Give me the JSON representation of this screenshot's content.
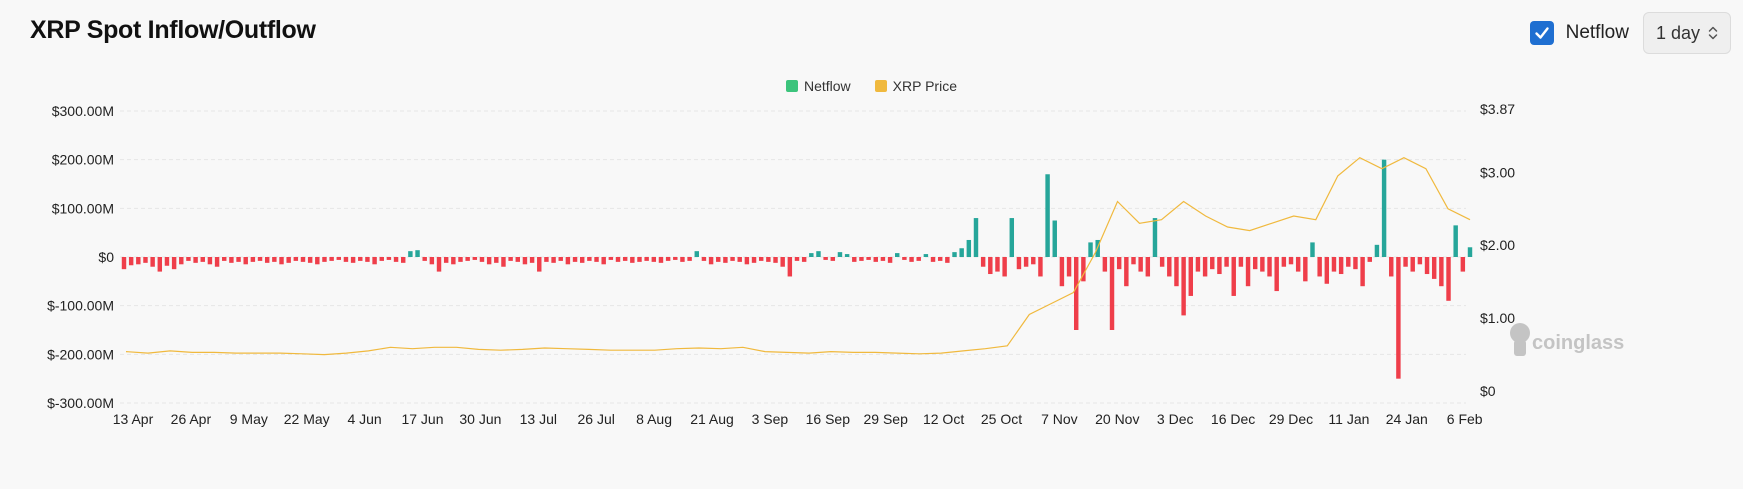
{
  "header": {
    "title": "XRP Spot Inflow/Outflow",
    "toggle_label": "Netflow",
    "period_value": "1 day"
  },
  "watermark": "coinglass",
  "colors": {
    "positive": "#26a69a",
    "negative": "#ef3e4a",
    "price": "#f0b93e",
    "legend_netflow": "#3cc47c",
    "legend_price": "#f0b93e",
    "checkbox": "#1f6fd1"
  },
  "chart_data": {
    "type": "bar",
    "legend": [
      {
        "name": "Netflow",
        "color": "#3cc47c"
      },
      {
        "name": "XRP Price",
        "color": "#f0b93e"
      }
    ],
    "left_axis": {
      "ticks": [
        "$300.00M",
        "$200.00M",
        "$100.00M",
        "$0",
        "$-100.00M",
        "$-200.00M",
        "$-300.00M"
      ],
      "tick_values": [
        300,
        200,
        100,
        0,
        -100,
        -200,
        -300
      ],
      "range": [
        -300,
        300
      ],
      "unit": "USD millions"
    },
    "right_axis": {
      "ticks": [
        "$3.87",
        "$3.00",
        "$2.00",
        "$1.00",
        "$0"
      ],
      "tick_values": [
        3.87,
        3.0,
        2.0,
        1.0,
        0
      ],
      "range": [
        0,
        3.87
      ]
    },
    "x_ticks": [
      "13 Apr",
      "26 Apr",
      "9 May",
      "22 May",
      "4 Jun",
      "17 Jun",
      "30 Jun",
      "13 Jul",
      "26 Jul",
      "8 Aug",
      "21 Aug",
      "3 Sep",
      "16 Sep",
      "29 Sep",
      "12 Oct",
      "25 Oct",
      "7 Nov",
      "20 Nov",
      "3 Dec",
      "16 Dec",
      "29 Dec",
      "11 Jan",
      "24 Jan",
      "6 Feb"
    ],
    "grid": true,
    "legend_position": "top-center",
    "netflow_every_2_days": [
      -25,
      -17,
      -15,
      -12,
      -20,
      -30,
      -18,
      -25,
      -15,
      -8,
      -12,
      -10,
      -15,
      -20,
      -8,
      -12,
      -10,
      -15,
      -10,
      -8,
      -12,
      -10,
      -15,
      -12,
      -8,
      -10,
      -12,
      -15,
      -10,
      -8,
      -6,
      -10,
      -12,
      -8,
      -10,
      -15,
      -8,
      -6,
      -10,
      -12,
      12,
      14,
      -8,
      -15,
      -30,
      -12,
      -15,
      -10,
      -8,
      -6,
      -10,
      -15,
      -12,
      -20,
      -8,
      -10,
      -15,
      -12,
      -30,
      -10,
      -12,
      -8,
      -15,
      -10,
      -12,
      -8,
      -10,
      -15,
      -6,
      -10,
      -8,
      -12,
      -10,
      -8,
      -10,
      -12,
      -8,
      -6,
      -10,
      -8,
      12,
      -8,
      -15,
      -10,
      -12,
      -8,
      -10,
      -15,
      -12,
      -8,
      -10,
      -12,
      -20,
      -40,
      -8,
      -10,
      8,
      12,
      -6,
      -8,
      10,
      6,
      -10,
      -8,
      -6,
      -10,
      -8,
      -12,
      8,
      -6,
      -10,
      -8,
      6,
      -10,
      -8,
      -12,
      10,
      18,
      35,
      80,
      -20,
      -35,
      -30,
      -40,
      80,
      -25,
      -20,
      -15,
      -40,
      170,
      75,
      -60,
      -40,
      -150,
      -50,
      30,
      35,
      -30,
      -150,
      -25,
      -60,
      -15,
      -30,
      -40,
      80,
      -20,
      -40,
      -60,
      -120,
      -80,
      -30,
      -40,
      -25,
      -35,
      -20,
      -80,
      -20,
      -60,
      -25,
      -30,
      -40,
      -70,
      -20,
      -15,
      -30,
      -50,
      30,
      -40,
      -55,
      -30,
      -35,
      -20,
      -25,
      -60,
      -10,
      25,
      200,
      -40,
      -250,
      -20,
      -30,
      -15,
      -35,
      -45,
      -60,
      -90,
      65,
      -30,
      20
    ],
    "xrp_price_weekly": [
      0.54,
      0.52,
      0.55,
      0.53,
      0.53,
      0.52,
      0.52,
      0.52,
      0.51,
      0.5,
      0.52,
      0.55,
      0.6,
      0.58,
      0.6,
      0.6,
      0.57,
      0.56,
      0.57,
      0.59,
      0.58,
      0.57,
      0.56,
      0.56,
      0.56,
      0.58,
      0.59,
      0.58,
      0.6,
      0.54,
      0.53,
      0.52,
      0.54,
      0.53,
      0.53,
      0.52,
      0.51,
      0.52,
      0.55,
      0.58,
      0.62,
      1.05,
      1.2,
      1.35,
      1.9,
      2.6,
      2.3,
      2.35,
      2.6,
      2.4,
      2.25,
      2.2,
      2.3,
      2.4,
      2.35,
      2.95,
      3.2,
      3.05,
      3.2,
      3.05,
      2.5,
      2.35
    ]
  }
}
